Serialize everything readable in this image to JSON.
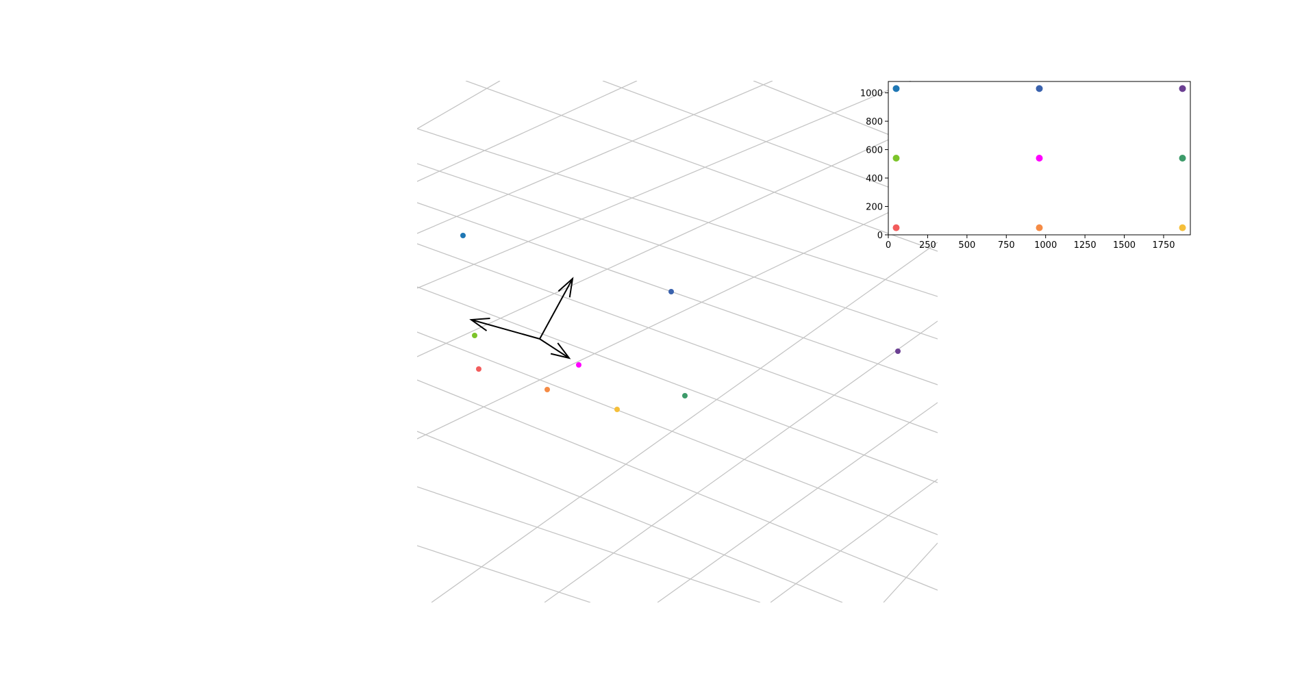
{
  "chart_data": [
    {
      "type": "scatter",
      "view": "3d-perspective-plane",
      "title": "",
      "xlabel": "",
      "ylabel": "",
      "grid": true,
      "points": [
        {
          "id": "p1",
          "x": 50,
          "y": 1030,
          "color": "#1f77b4"
        },
        {
          "id": "p2",
          "x": 960,
          "y": 1030,
          "color": "#3a62ad"
        },
        {
          "id": "p3",
          "x": 1870,
          "y": 1030,
          "color": "#6b3f92"
        },
        {
          "id": "p4",
          "x": 50,
          "y": 540,
          "color": "#7cc42a"
        },
        {
          "id": "p5",
          "x": 960,
          "y": 540,
          "color": "#ff00ff"
        },
        {
          "id": "p6",
          "x": 1870,
          "y": 540,
          "color": "#3d9b6a"
        },
        {
          "id": "p7",
          "x": 50,
          "y": 50,
          "color": "#f25c5c"
        },
        {
          "id": "p8",
          "x": 960,
          "y": 50,
          "color": "#f58b45"
        },
        {
          "id": "p9",
          "x": 1870,
          "y": 50,
          "color": "#f5bf3a"
        }
      ],
      "axes_arrows": 3
    },
    {
      "type": "scatter",
      "title": "",
      "xlabel": "",
      "ylabel": "",
      "grid": false,
      "xlim": [
        0,
        1920
      ],
      "ylim": [
        0,
        1080
      ],
      "xticks": [
        "0",
        "250",
        "500",
        "750",
        "1000",
        "1250",
        "1500",
        "1750"
      ],
      "yticks": [
        "0",
        "200",
        "400",
        "600",
        "800",
        "1000"
      ],
      "series": [
        {
          "x": 50,
          "y": 1030,
          "color": "#1f77b4"
        },
        {
          "x": 960,
          "y": 1030,
          "color": "#3a62ad"
        },
        {
          "x": 1870,
          "y": 1030,
          "color": "#6b3f92"
        },
        {
          "x": 50,
          "y": 540,
          "color": "#7cc42a"
        },
        {
          "x": 960,
          "y": 540,
          "color": "#ff00ff"
        },
        {
          "x": 1870,
          "y": 540,
          "color": "#3d9b6a"
        },
        {
          "x": 50,
          "y": 50,
          "color": "#f25c5c"
        },
        {
          "x": 960,
          "y": 50,
          "color": "#f58b45"
        },
        {
          "x": 1870,
          "y": 50,
          "color": "#f5bf3a"
        }
      ]
    }
  ]
}
